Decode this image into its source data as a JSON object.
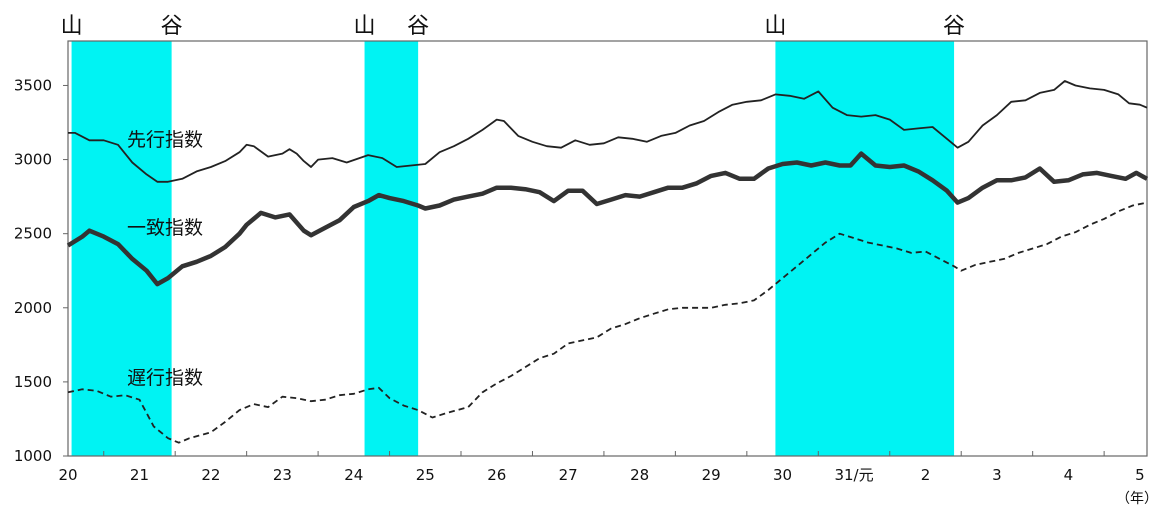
{
  "chart_data": {
    "type": "line",
    "title": "",
    "xlabel": "",
    "ylabel": "",
    "x_unit": "（年）",
    "x_ticks": [
      "20",
      "21",
      "22",
      "23",
      "24",
      "25",
      "26",
      "27",
      "28",
      "29",
      "30",
      "31/元",
      "2",
      "3",
      "4",
      "5"
    ],
    "x_range": [
      20,
      35.1
    ],
    "ylim": [
      1000,
      3800
    ],
    "y_ticks": [
      1000,
      1500,
      2000,
      2500,
      3000,
      3500
    ],
    "grid": false,
    "shaded_periods": [
      {
        "from": 20.05,
        "to": 21.45,
        "start_label": "山",
        "end_label": "谷"
      },
      {
        "from": 24.15,
        "to": 24.9,
        "start_label": "山",
        "end_label": "谷"
      },
      {
        "from": 29.9,
        "to": 32.4,
        "start_label": "山",
        "end_label": "谷"
      }
    ],
    "shade_color": "#00f3f3",
    "series": [
      {
        "name": "先行指数",
        "style": "thin",
        "points": [
          [
            20,
            3180
          ],
          [
            20.1,
            3180
          ],
          [
            20.3,
            3130
          ],
          [
            20.5,
            3130
          ],
          [
            20.7,
            3100
          ],
          [
            20.9,
            2980
          ],
          [
            21.1,
            2900
          ],
          [
            21.25,
            2850
          ],
          [
            21.4,
            2850
          ],
          [
            21.6,
            2870
          ],
          [
            21.8,
            2920
          ],
          [
            22,
            2950
          ],
          [
            22.2,
            2990
          ],
          [
            22.4,
            3050
          ],
          [
            22.5,
            3100
          ],
          [
            22.6,
            3090
          ],
          [
            22.8,
            3020
          ],
          [
            23,
            3040
          ],
          [
            23.1,
            3070
          ],
          [
            23.2,
            3040
          ],
          [
            23.3,
            2990
          ],
          [
            23.4,
            2950
          ],
          [
            23.5,
            3000
          ],
          [
            23.7,
            3010
          ],
          [
            23.9,
            2980
          ],
          [
            24.2,
            3030
          ],
          [
            24.4,
            3010
          ],
          [
            24.6,
            2950
          ],
          [
            24.8,
            2960
          ],
          [
            25,
            2970
          ],
          [
            25.2,
            3050
          ],
          [
            25.4,
            3090
          ],
          [
            25.6,
            3140
          ],
          [
            25.8,
            3200
          ],
          [
            26,
            3270
          ],
          [
            26.1,
            3260
          ],
          [
            26.3,
            3160
          ],
          [
            26.5,
            3120
          ],
          [
            26.7,
            3090
          ],
          [
            26.9,
            3080
          ],
          [
            27.1,
            3130
          ],
          [
            27.3,
            3100
          ],
          [
            27.5,
            3110
          ],
          [
            27.7,
            3150
          ],
          [
            27.9,
            3140
          ],
          [
            28.1,
            3120
          ],
          [
            28.3,
            3160
          ],
          [
            28.5,
            3180
          ],
          [
            28.7,
            3230
          ],
          [
            28.9,
            3260
          ],
          [
            29.1,
            3320
          ],
          [
            29.3,
            3370
          ],
          [
            29.5,
            3390
          ],
          [
            29.7,
            3400
          ],
          [
            29.9,
            3440
          ],
          [
            30.1,
            3430
          ],
          [
            30.3,
            3410
          ],
          [
            30.5,
            3460
          ],
          [
            30.7,
            3350
          ],
          [
            30.9,
            3300
          ],
          [
            31.1,
            3290
          ],
          [
            31.3,
            3300
          ],
          [
            31.5,
            3270
          ],
          [
            31.7,
            3200
          ],
          [
            31.9,
            3210
          ],
          [
            32.1,
            3220
          ],
          [
            32.3,
            3140
          ],
          [
            32.45,
            3080
          ],
          [
            32.6,
            3120
          ],
          [
            32.8,
            3230
          ],
          [
            33,
            3300
          ],
          [
            33.2,
            3390
          ],
          [
            33.4,
            3400
          ],
          [
            33.6,
            3450
          ],
          [
            33.8,
            3470
          ],
          [
            33.95,
            3530
          ],
          [
            34.1,
            3500
          ],
          [
            34.3,
            3480
          ],
          [
            34.5,
            3470
          ],
          [
            34.7,
            3440
          ],
          [
            34.85,
            3380
          ],
          [
            35,
            3370
          ],
          [
            35.1,
            3350
          ]
        ]
      },
      {
        "name": "一致指数",
        "style": "thick",
        "points": [
          [
            20,
            2420
          ],
          [
            20.2,
            2480
          ],
          [
            20.3,
            2520
          ],
          [
            20.5,
            2480
          ],
          [
            20.7,
            2430
          ],
          [
            20.9,
            2330
          ],
          [
            21.1,
            2250
          ],
          [
            21.25,
            2160
          ],
          [
            21.4,
            2200
          ],
          [
            21.6,
            2280
          ],
          [
            21.8,
            2310
          ],
          [
            22,
            2350
          ],
          [
            22.2,
            2410
          ],
          [
            22.4,
            2500
          ],
          [
            22.5,
            2560
          ],
          [
            22.7,
            2640
          ],
          [
            22.9,
            2610
          ],
          [
            23.1,
            2630
          ],
          [
            23.3,
            2520
          ],
          [
            23.4,
            2490
          ],
          [
            23.6,
            2540
          ],
          [
            23.8,
            2590
          ],
          [
            24,
            2680
          ],
          [
            24.2,
            2720
          ],
          [
            24.35,
            2760
          ],
          [
            24.5,
            2740
          ],
          [
            24.7,
            2720
          ],
          [
            24.9,
            2690
          ],
          [
            25,
            2670
          ],
          [
            25.2,
            2690
          ],
          [
            25.4,
            2730
          ],
          [
            25.6,
            2750
          ],
          [
            25.8,
            2770
          ],
          [
            26,
            2810
          ],
          [
            26.2,
            2810
          ],
          [
            26.4,
            2800
          ],
          [
            26.6,
            2780
          ],
          [
            26.8,
            2720
          ],
          [
            27,
            2790
          ],
          [
            27.2,
            2790
          ],
          [
            27.4,
            2700
          ],
          [
            27.6,
            2730
          ],
          [
            27.8,
            2760
          ],
          [
            28,
            2750
          ],
          [
            28.2,
            2780
          ],
          [
            28.4,
            2810
          ],
          [
            28.6,
            2810
          ],
          [
            28.8,
            2840
          ],
          [
            29,
            2890
          ],
          [
            29.2,
            2910
          ],
          [
            29.4,
            2870
          ],
          [
            29.6,
            2870
          ],
          [
            29.8,
            2940
          ],
          [
            30,
            2970
          ],
          [
            30.2,
            2980
          ],
          [
            30.4,
            2960
          ],
          [
            30.6,
            2980
          ],
          [
            30.8,
            2960
          ],
          [
            30.95,
            2960
          ],
          [
            31.1,
            3040
          ],
          [
            31.3,
            2960
          ],
          [
            31.5,
            2950
          ],
          [
            31.7,
            2960
          ],
          [
            31.9,
            2920
          ],
          [
            32.1,
            2860
          ],
          [
            32.3,
            2790
          ],
          [
            32.45,
            2710
          ],
          [
            32.6,
            2740
          ],
          [
            32.8,
            2810
          ],
          [
            33,
            2860
          ],
          [
            33.2,
            2860
          ],
          [
            33.4,
            2880
          ],
          [
            33.6,
            2940
          ],
          [
            33.8,
            2850
          ],
          [
            34,
            2860
          ],
          [
            34.2,
            2900
          ],
          [
            34.4,
            2910
          ],
          [
            34.6,
            2890
          ],
          [
            34.8,
            2870
          ],
          [
            34.95,
            2910
          ],
          [
            35.1,
            2870
          ]
        ]
      },
      {
        "name": "遅行指数",
        "style": "dashed",
        "points": [
          [
            20,
            1430
          ],
          [
            20.2,
            1450
          ],
          [
            20.4,
            1440
          ],
          [
            20.6,
            1400
          ],
          [
            20.8,
            1410
          ],
          [
            21,
            1380
          ],
          [
            21.2,
            1200
          ],
          [
            21.4,
            1120
          ],
          [
            21.55,
            1090
          ],
          [
            21.7,
            1120
          ],
          [
            22,
            1160
          ],
          [
            22.2,
            1230
          ],
          [
            22.4,
            1310
          ],
          [
            22.6,
            1350
          ],
          [
            22.8,
            1330
          ],
          [
            23,
            1400
          ],
          [
            23.2,
            1390
          ],
          [
            23.4,
            1370
          ],
          [
            23.6,
            1380
          ],
          [
            23.8,
            1410
          ],
          [
            24,
            1420
          ],
          [
            24.2,
            1450
          ],
          [
            24.35,
            1460
          ],
          [
            24.5,
            1390
          ],
          [
            24.7,
            1340
          ],
          [
            24.9,
            1310
          ],
          [
            25.1,
            1260
          ],
          [
            25.3,
            1290
          ],
          [
            25.6,
            1330
          ],
          [
            25.8,
            1430
          ],
          [
            26,
            1490
          ],
          [
            26.2,
            1540
          ],
          [
            26.4,
            1600
          ],
          [
            26.6,
            1660
          ],
          [
            26.8,
            1690
          ],
          [
            27,
            1760
          ],
          [
            27.2,
            1780
          ],
          [
            27.4,
            1800
          ],
          [
            27.6,
            1860
          ],
          [
            27.8,
            1890
          ],
          [
            28,
            1930
          ],
          [
            28.2,
            1960
          ],
          [
            28.4,
            1990
          ],
          [
            28.6,
            2000
          ],
          [
            28.8,
            2000
          ],
          [
            29,
            2000
          ],
          [
            29.2,
            2020
          ],
          [
            29.4,
            2030
          ],
          [
            29.6,
            2050
          ],
          [
            29.8,
            2120
          ],
          [
            30,
            2200
          ],
          [
            30.2,
            2280
          ],
          [
            30.4,
            2360
          ],
          [
            30.6,
            2440
          ],
          [
            30.8,
            2500
          ],
          [
            31,
            2470
          ],
          [
            31.2,
            2440
          ],
          [
            31.4,
            2420
          ],
          [
            31.6,
            2400
          ],
          [
            31.8,
            2370
          ],
          [
            32,
            2380
          ],
          [
            32.2,
            2330
          ],
          [
            32.4,
            2280
          ],
          [
            32.5,
            2250
          ],
          [
            32.7,
            2290
          ],
          [
            32.9,
            2310
          ],
          [
            33.1,
            2330
          ],
          [
            33.3,
            2370
          ],
          [
            33.5,
            2400
          ],
          [
            33.7,
            2430
          ],
          [
            33.9,
            2480
          ],
          [
            34.1,
            2510
          ],
          [
            34.3,
            2560
          ],
          [
            34.5,
            2600
          ],
          [
            34.7,
            2650
          ],
          [
            34.9,
            2690
          ],
          [
            35.1,
            2710
          ]
        ]
      }
    ],
    "labels": [
      {
        "series": "先行指数",
        "text": "先行指数"
      },
      {
        "series": "一致指数",
        "text": "一致指数"
      },
      {
        "series": "遅行指数",
        "text": "遅行指数"
      }
    ]
  }
}
